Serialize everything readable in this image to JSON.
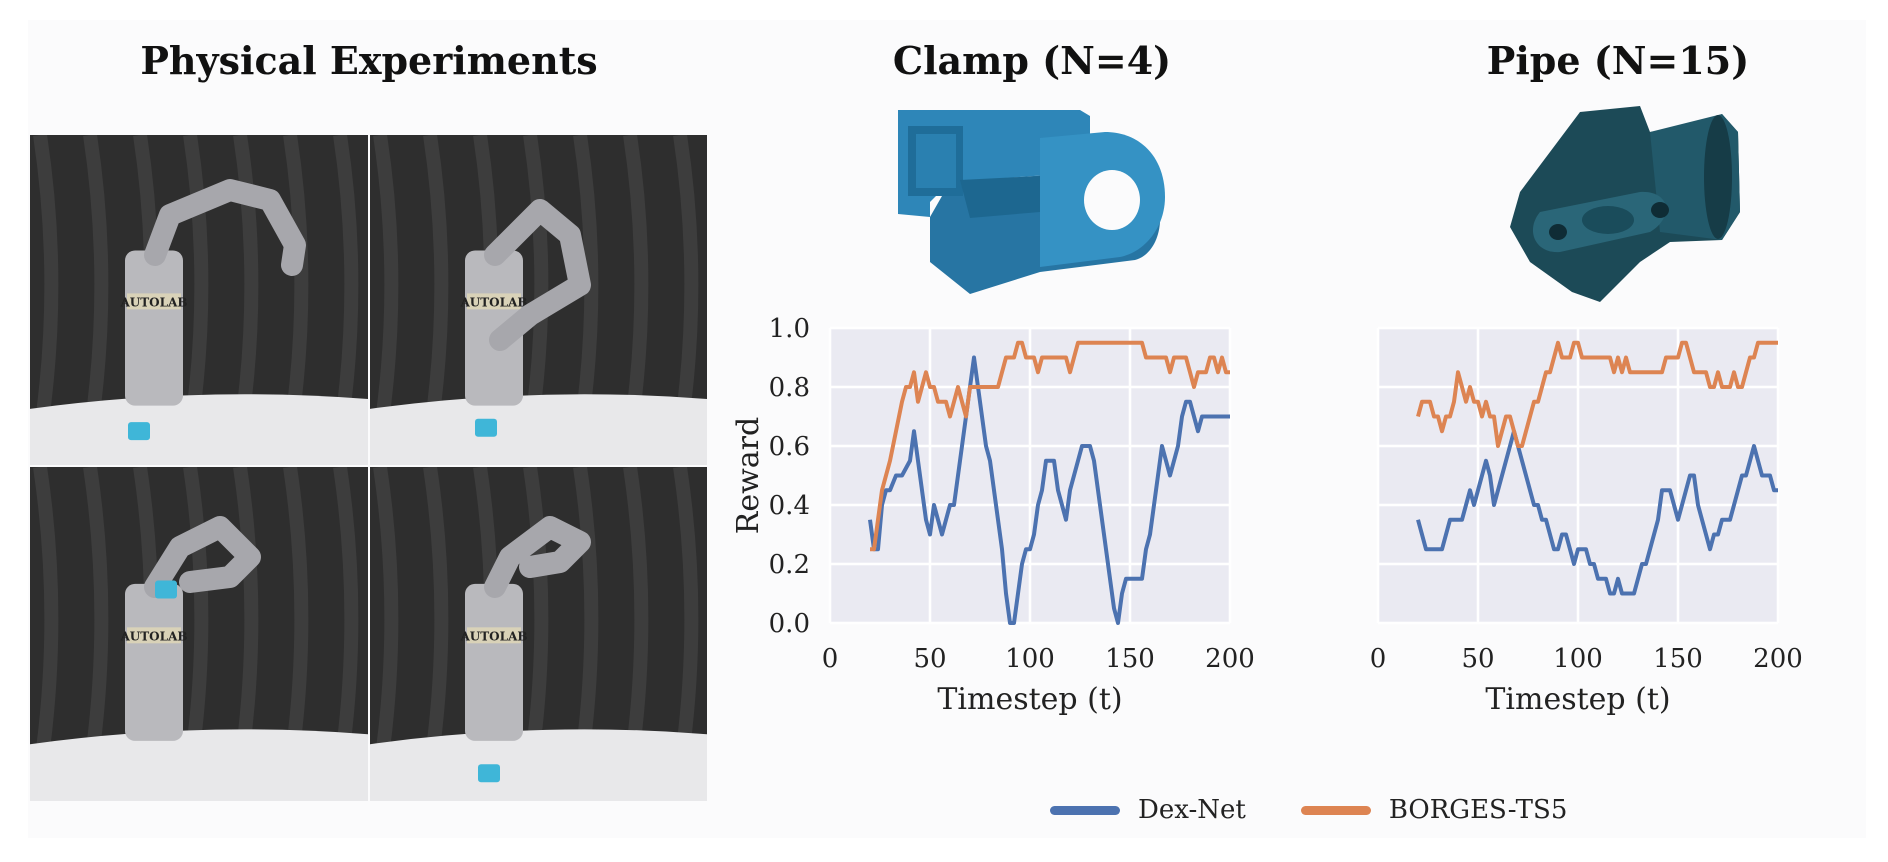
{
  "panel_titles": {
    "physical": "Physical Experiments",
    "clamp": "Clamp (N=4)",
    "pipe": "Pipe (N=15)"
  },
  "photo_logo_text": "AUTOLAB",
  "colors": {
    "dexnet": "#4c72b0",
    "borges": "#dd8452",
    "plot_bg": "#eaeaf2",
    "grid": "#ffffff",
    "curtain": "#2e2e2e",
    "clamp_obj": "#2e86b8",
    "pipe_obj": "#1e4a5a"
  },
  "legend": [
    "Dex-Net",
    "BORGES-TS5"
  ],
  "chart_data": [
    {
      "type": "line",
      "title": "",
      "xlabel": "Timestep (t)",
      "ylabel": "Reward",
      "xlim": [
        0,
        200
      ],
      "ylim": [
        0,
        1.0
      ],
      "xticks": [
        "0",
        "50",
        "100",
        "150",
        "200"
      ],
      "yticks": [
        "0.0",
        "0.2",
        "0.4",
        "0.6",
        "0.8",
        "1.0"
      ],
      "grid": true,
      "series": [
        {
          "name": "Dex-Net",
          "x": [
            20,
            22,
            24,
            26,
            28,
            30,
            33,
            36,
            40,
            42,
            44,
            46,
            48,
            50,
            52,
            54,
            56,
            58,
            60,
            62,
            64,
            66,
            68,
            70,
            72,
            74,
            76,
            78,
            80,
            82,
            84,
            86,
            88,
            90,
            92,
            94,
            96,
            98,
            100,
            102,
            104,
            106,
            108,
            110,
            112,
            114,
            116,
            118,
            120,
            122,
            124,
            126,
            128,
            130,
            132,
            134,
            136,
            138,
            140,
            142,
            144,
            146,
            148,
            150,
            152,
            154,
            156,
            158,
            160,
            162,
            164,
            166,
            168,
            170,
            172,
            174,
            176,
            178,
            180,
            182,
            184,
            186,
            188,
            190,
            192,
            194,
            196,
            198,
            200
          ],
          "y": [
            0.35,
            0.25,
            0.25,
            0.4,
            0.45,
            0.45,
            0.5,
            0.5,
            0.55,
            0.65,
            0.55,
            0.45,
            0.35,
            0.3,
            0.4,
            0.35,
            0.3,
            0.35,
            0.4,
            0.4,
            0.5,
            0.6,
            0.7,
            0.8,
            0.9,
            0.8,
            0.7,
            0.6,
            0.55,
            0.45,
            0.35,
            0.25,
            0.1,
            0.0,
            0.0,
            0.1,
            0.2,
            0.25,
            0.25,
            0.3,
            0.4,
            0.45,
            0.55,
            0.55,
            0.55,
            0.45,
            0.4,
            0.35,
            0.45,
            0.5,
            0.55,
            0.6,
            0.6,
            0.6,
            0.55,
            0.45,
            0.35,
            0.25,
            0.15,
            0.05,
            0.0,
            0.1,
            0.15,
            0.15,
            0.15,
            0.15,
            0.15,
            0.25,
            0.3,
            0.4,
            0.5,
            0.6,
            0.55,
            0.5,
            0.55,
            0.6,
            0.7,
            0.75,
            0.75,
            0.7,
            0.65,
            0.7,
            0.7,
            0.7,
            0.7,
            0.7,
            0.7,
            0.7,
            0.7
          ]
        },
        {
          "name": "BORGES-TS5",
          "x": [
            20,
            22,
            24,
            26,
            28,
            30,
            33,
            36,
            38,
            40,
            42,
            44,
            46,
            48,
            50,
            52,
            54,
            56,
            58,
            60,
            62,
            64,
            66,
            68,
            70,
            72,
            74,
            76,
            78,
            80,
            82,
            84,
            86,
            88,
            90,
            92,
            94,
            96,
            98,
            100,
            102,
            104,
            106,
            108,
            110,
            112,
            114,
            116,
            118,
            120,
            122,
            124,
            126,
            128,
            130,
            132,
            134,
            136,
            138,
            140,
            142,
            144,
            146,
            148,
            150,
            152,
            154,
            156,
            158,
            160,
            162,
            164,
            166,
            168,
            170,
            172,
            174,
            176,
            178,
            180,
            182,
            184,
            186,
            188,
            190,
            192,
            194,
            196,
            198,
            200
          ],
          "y": [
            0.25,
            0.25,
            0.35,
            0.45,
            0.5,
            0.55,
            0.65,
            0.75,
            0.8,
            0.8,
            0.85,
            0.75,
            0.8,
            0.85,
            0.8,
            0.8,
            0.75,
            0.75,
            0.75,
            0.7,
            0.75,
            0.8,
            0.75,
            0.7,
            0.8,
            0.8,
            0.8,
            0.8,
            0.8,
            0.8,
            0.8,
            0.8,
            0.85,
            0.9,
            0.9,
            0.9,
            0.95,
            0.95,
            0.9,
            0.9,
            0.9,
            0.85,
            0.9,
            0.9,
            0.9,
            0.9,
            0.9,
            0.9,
            0.9,
            0.85,
            0.9,
            0.95,
            0.95,
            0.95,
            0.95,
            0.95,
            0.95,
            0.95,
            0.95,
            0.95,
            0.95,
            0.95,
            0.95,
            0.95,
            0.95,
            0.95,
            0.95,
            0.95,
            0.9,
            0.9,
            0.9,
            0.9,
            0.9,
            0.9,
            0.85,
            0.9,
            0.9,
            0.9,
            0.9,
            0.85,
            0.8,
            0.85,
            0.85,
            0.85,
            0.9,
            0.9,
            0.85,
            0.9,
            0.85,
            0.85
          ]
        }
      ]
    },
    {
      "type": "line",
      "title": "",
      "xlabel": "Timestep (t)",
      "ylabel": "",
      "xlim": [
        0,
        200
      ],
      "ylim": [
        0,
        1.0
      ],
      "xticks": [
        "0",
        "50",
        "100",
        "150",
        "200"
      ],
      "yticks": [],
      "grid": true,
      "series": [
        {
          "name": "Dex-Net",
          "x": [
            20,
            22,
            24,
            26,
            28,
            30,
            32,
            34,
            36,
            38,
            40,
            42,
            44,
            46,
            48,
            50,
            52,
            54,
            56,
            58,
            60,
            62,
            64,
            66,
            68,
            70,
            72,
            74,
            76,
            78,
            80,
            82,
            84,
            86,
            88,
            90,
            92,
            94,
            96,
            98,
            100,
            102,
            104,
            106,
            108,
            110,
            112,
            114,
            116,
            118,
            120,
            122,
            124,
            126,
            128,
            130,
            132,
            134,
            136,
            138,
            140,
            142,
            144,
            146,
            148,
            150,
            152,
            154,
            156,
            158,
            160,
            162,
            164,
            166,
            168,
            170,
            172,
            174,
            176,
            178,
            180,
            182,
            184,
            186,
            188,
            190,
            192,
            194,
            196,
            198,
            200
          ],
          "y": [
            0.35,
            0.3,
            0.25,
            0.25,
            0.25,
            0.25,
            0.25,
            0.3,
            0.35,
            0.35,
            0.35,
            0.35,
            0.4,
            0.45,
            0.4,
            0.45,
            0.5,
            0.55,
            0.5,
            0.4,
            0.45,
            0.5,
            0.55,
            0.6,
            0.65,
            0.6,
            0.55,
            0.5,
            0.45,
            0.4,
            0.4,
            0.35,
            0.35,
            0.3,
            0.25,
            0.25,
            0.3,
            0.3,
            0.25,
            0.2,
            0.25,
            0.25,
            0.25,
            0.2,
            0.2,
            0.15,
            0.15,
            0.15,
            0.1,
            0.1,
            0.15,
            0.1,
            0.1,
            0.1,
            0.1,
            0.15,
            0.2,
            0.2,
            0.25,
            0.3,
            0.35,
            0.45,
            0.45,
            0.45,
            0.4,
            0.35,
            0.4,
            0.45,
            0.5,
            0.5,
            0.4,
            0.35,
            0.3,
            0.25,
            0.3,
            0.3,
            0.35,
            0.35,
            0.35,
            0.4,
            0.45,
            0.5,
            0.5,
            0.55,
            0.6,
            0.55,
            0.5,
            0.5,
            0.5,
            0.45,
            0.45
          ]
        },
        {
          "name": "BORGES-TS5",
          "x": [
            20,
            22,
            24,
            26,
            28,
            30,
            32,
            34,
            36,
            38,
            40,
            42,
            44,
            46,
            48,
            50,
            52,
            54,
            56,
            58,
            60,
            62,
            64,
            66,
            68,
            70,
            72,
            74,
            76,
            78,
            80,
            82,
            84,
            86,
            88,
            90,
            92,
            94,
            96,
            98,
            100,
            102,
            104,
            106,
            108,
            110,
            112,
            114,
            116,
            118,
            120,
            122,
            124,
            126,
            128,
            130,
            132,
            134,
            136,
            138,
            140,
            142,
            144,
            146,
            148,
            150,
            152,
            154,
            156,
            158,
            160,
            162,
            164,
            166,
            168,
            170,
            172,
            174,
            176,
            178,
            180,
            182,
            184,
            186,
            188,
            190,
            192,
            194,
            196,
            198,
            200
          ],
          "y": [
            0.7,
            0.75,
            0.75,
            0.75,
            0.7,
            0.7,
            0.65,
            0.7,
            0.7,
            0.75,
            0.85,
            0.8,
            0.75,
            0.8,
            0.75,
            0.75,
            0.7,
            0.75,
            0.7,
            0.7,
            0.6,
            0.65,
            0.7,
            0.7,
            0.65,
            0.6,
            0.6,
            0.65,
            0.7,
            0.75,
            0.75,
            0.8,
            0.85,
            0.85,
            0.9,
            0.95,
            0.9,
            0.9,
            0.9,
            0.95,
            0.95,
            0.9,
            0.9,
            0.9,
            0.9,
            0.9,
            0.9,
            0.9,
            0.9,
            0.85,
            0.9,
            0.85,
            0.9,
            0.85,
            0.85,
            0.85,
            0.85,
            0.85,
            0.85,
            0.85,
            0.85,
            0.85,
            0.9,
            0.9,
            0.9,
            0.9,
            0.95,
            0.95,
            0.9,
            0.85,
            0.85,
            0.85,
            0.85,
            0.8,
            0.8,
            0.85,
            0.8,
            0.8,
            0.8,
            0.85,
            0.8,
            0.8,
            0.85,
            0.9,
            0.9,
            0.95,
            0.95,
            0.95,
            0.95,
            0.95,
            0.95
          ]
        }
      ]
    }
  ]
}
